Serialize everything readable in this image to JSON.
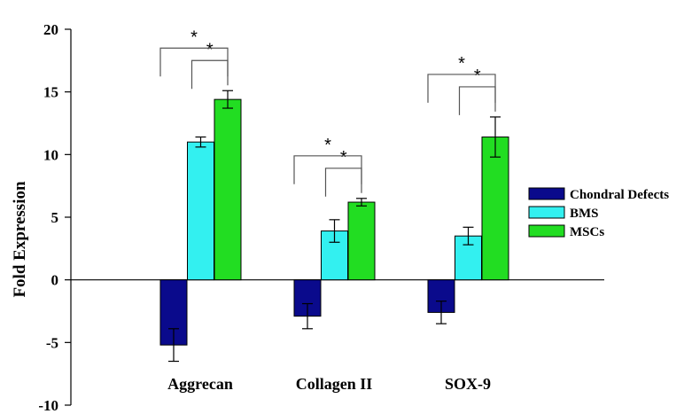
{
  "chart_data": {
    "type": "bar",
    "title": "",
    "xlabel": "",
    "ylabel": "Fold Expression",
    "ylim": [
      -10,
      20
    ],
    "yticks": [
      -10,
      -5,
      0,
      5,
      10,
      15,
      20
    ],
    "categories": [
      "Aggrecan",
      "Collagen II",
      "SOX-9"
    ],
    "series": [
      {
        "name": "Chondral Defects",
        "color": "#0a0a8c",
        "values": [
          -5.2,
          -2.9,
          -2.6
        ],
        "errors": [
          1.3,
          1.0,
          0.9
        ]
      },
      {
        "name": "BMS",
        "color": "#33f0f0",
        "values": [
          11.0,
          3.9,
          3.5
        ],
        "errors": [
          0.4,
          0.9,
          0.7
        ]
      },
      {
        "name": "MSCs",
        "color": "#22dd22",
        "values": [
          14.4,
          6.2,
          11.4
        ],
        "errors": [
          0.7,
          0.3,
          1.6
        ]
      }
    ],
    "significance": [
      {
        "category": 0,
        "from": 0,
        "to": 2,
        "label": "*"
      },
      {
        "category": 0,
        "from": 1,
        "to": 2,
        "label": "*"
      },
      {
        "category": 1,
        "from": 0,
        "to": 2,
        "label": "*"
      },
      {
        "category": 1,
        "from": 1,
        "to": 2,
        "label": "*"
      },
      {
        "category": 2,
        "from": 0,
        "to": 2,
        "label": "*"
      },
      {
        "category": 2,
        "from": 1,
        "to": 2,
        "label": "*"
      }
    ],
    "grid": false,
    "legend_position": "right"
  }
}
